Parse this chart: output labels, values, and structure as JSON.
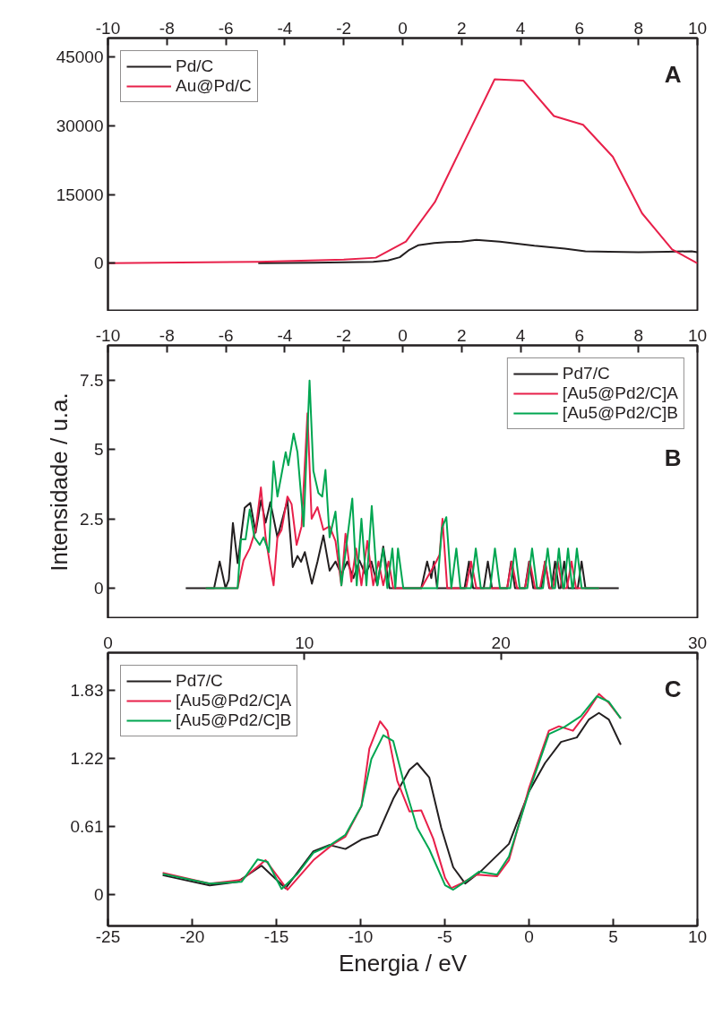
{
  "chart_data": [
    {
      "type": "line",
      "annotations": [
        "A"
      ],
      "xlim": [
        -10,
        10
      ],
      "xticks": [
        -10,
        -8,
        -6,
        -4,
        -2,
        0,
        2,
        4,
        6,
        8,
        10
      ],
      "ylim": [
        -10500,
        49100
      ],
      "yticks": [
        0,
        15000,
        30000,
        45000
      ],
      "legend": "top left",
      "grid": false,
      "series": [
        {
          "name": "Pd/C",
          "color": "#231f20",
          "x": [
            -4.9,
            -3,
            -1,
            -0.5,
            -0.1,
            0.2,
            0.52,
            1.07,
            1.5,
            2.0,
            2.5,
            3.3,
            4.47,
            5.5,
            6.2,
            7,
            8,
            9,
            9.8,
            10
          ],
          "values": [
            0,
            100,
            300,
            600,
            1300,
            2800,
            3900,
            4400,
            4600,
            4700,
            5100,
            4700,
            3800,
            3200,
            2600,
            2500,
            2400,
            2500,
            2600,
            2400
          ]
        },
        {
          "name": "Au@Pd/C",
          "color": "#e8204a",
          "x": [
            -10,
            -4.9,
            -2,
            -0.91,
            0.11,
            1.09,
            3.12,
            4.1,
            5.13,
            6.12,
            7.13,
            8.12,
            9.14,
            10
          ],
          "values": [
            0,
            300,
            800,
            1200,
            4700,
            13300,
            40100,
            39800,
            32100,
            30200,
            23200,
            10900,
            3000,
            0
          ]
        }
      ]
    },
    {
      "type": "line",
      "annotations": [
        "B"
      ],
      "ylabel": "Intensidade / u.a.",
      "xlim": [
        -10,
        10
      ],
      "xticks": [
        -10,
        -8,
        -6,
        -4,
        -2,
        0,
        2,
        4,
        6,
        8,
        10
      ],
      "ylim": [
        -1.1,
        8.75
      ],
      "yticks": [
        0,
        {
          "value": 2.5,
          "label": "2.5"
        },
        5,
        {
          "value": 7.5,
          "label": "7.5"
        }
      ],
      "legend": "top right",
      "grid": false,
      "series": [
        {
          "name": "Pd7/C",
          "color": "#231f20",
          "x": [
            -7.36,
            -6.4,
            -6.21,
            -6.01,
            -5.9,
            -5.76,
            -5.6,
            -5.36,
            -5.17,
            -4.99,
            -4.81,
            -4.65,
            -4.49,
            -4.25,
            -3.91,
            -3.73,
            -3.57,
            -3.45,
            -3.32,
            -3.08,
            -2.89,
            -2.69,
            -2.48,
            -2.28,
            -2.08,
            -1.88,
            -1.67,
            -1.47,
            -1.27,
            -1.06,
            -0.86,
            -0.66,
            -0.45,
            0.63,
            0.83,
            0.97,
            1.06,
            1.17,
            2.1,
            2.25,
            2.39,
            2.75,
            2.89,
            3.03,
            3.55,
            3.68,
            3.81,
            4.15,
            4.29,
            4.43,
            4.7,
            4.83,
            4.97,
            5.05,
            5.17,
            5.3,
            5.36,
            5.48,
            5.61,
            5.94,
            6.07,
            6.2,
            7.33
          ],
          "values": [
            0,
            0,
            0.96,
            0,
            0.3,
            2.35,
            0.9,
            2.9,
            3.07,
            2.0,
            3.16,
            2.36,
            3.1,
            1.83,
            3.16,
            0.76,
            1.16,
            0.95,
            1.3,
            0.16,
            0.96,
            1.9,
            0.63,
            0.96,
            0.5,
            0.96,
            0.36,
            1.0,
            0.5,
            0.96,
            0.1,
            1.5,
            0,
            0,
            0.96,
            0.36,
            0.96,
            0,
            0,
            0.96,
            0,
            0,
            0.96,
            0,
            0,
            0.96,
            0,
            0,
            0.96,
            0,
            0,
            0.96,
            0,
            0,
            0.96,
            0,
            0,
            0.96,
            0,
            0,
            0.96,
            0,
            0
          ]
        },
        {
          "name": "[Au5@Pd2/C]A",
          "color": "#e8204a",
          "x": [
            -6.68,
            -5.6,
            -5.4,
            -5.19,
            -4.99,
            -4.81,
            -4.65,
            -4.49,
            -4.38,
            -4.25,
            -4.11,
            -3.91,
            -3.77,
            -3.6,
            -3.43,
            -3.23,
            -3.09,
            -2.89,
            -2.69,
            -2.48,
            -2.28,
            -2.08,
            -1.94,
            -1.74,
            -1.58,
            -1.4,
            -1.2,
            -1.0,
            -0.82,
            -0.66,
            -0.48,
            -0.32,
            0.63,
            1.14,
            1.25,
            1.35,
            1.51,
            2.15,
            2.32,
            2.5,
            3.54,
            3.7,
            3.88,
            4.15,
            4.31,
            4.49,
            4.66,
            4.83,
            4.99,
            5.1,
            5.26,
            5.42,
            5.57,
            5.73,
            5.88,
            6.66
          ],
          "values": [
            0,
            0,
            1.0,
            1.43,
            2.1,
            3.63,
            1.83,
            0.76,
            0.1,
            1.83,
            2.1,
            3.3,
            3.03,
            1.56,
            2.23,
            6.3,
            2.5,
            2.92,
            2.1,
            2.23,
            1.7,
            0.1,
            1.96,
            0.23,
            1.43,
            0.1,
            1.7,
            0.1,
            0.96,
            0.1,
            0.96,
            0,
            0,
            0.96,
            1.2,
            2.5,
            0,
            0,
            0.96,
            0,
            0,
            0.96,
            0,
            0,
            0.96,
            0,
            0,
            0.96,
            0,
            0,
            0.96,
            0,
            0,
            0.96,
            0,
            0
          ]
        },
        {
          "name": "[Au5@Pd2/C]B",
          "color": "#00a651",
          "x": [
            -6.68,
            -5.6,
            -5.49,
            -5.33,
            -5.19,
            -5.03,
            -4.85,
            -4.72,
            -4.54,
            -4.38,
            -4.25,
            -4.11,
            -3.97,
            -3.88,
            -3.7,
            -3.57,
            -3.36,
            -3.16,
            -3.03,
            -2.86,
            -2.73,
            -2.62,
            -2.48,
            -2.28,
            -2.08,
            -1.71,
            -1.56,
            -1.4,
            -1.23,
            -1.05,
            -0.86,
            -0.66,
            -0.52,
            -0.35,
            -0.25,
            -0.16,
            0.02,
            1.17,
            1.33,
            1.48,
            1.65,
            1.82,
            1.96,
            2.32,
            2.48,
            2.65,
            2.97,
            3.13,
            3.3,
            3.65,
            3.81,
            3.97,
            4.23,
            4.39,
            4.56,
            4.76,
            4.92,
            5.08,
            5.17,
            5.3,
            5.44,
            5.48,
            5.61,
            5.75,
            5.78,
            5.91,
            6.07,
            6.66
          ],
          "values": [
            0,
            0,
            1.76,
            1.76,
            2.83,
            1.83,
            1.56,
            1.83,
            1.3,
            4.57,
            3.3,
            4.1,
            4.9,
            4.43,
            5.57,
            4.9,
            2.23,
            7.48,
            4.23,
            3.43,
            3.3,
            4.26,
            1.83,
            2.76,
            0.1,
            3.23,
            0.1,
            2.5,
            0.1,
            2.96,
            0.1,
            1.43,
            0,
            1.43,
            0,
            1.43,
            0,
            0,
            2.16,
            2.56,
            0,
            1.43,
            0,
            0,
            1.43,
            0,
            0,
            1.43,
            0,
            0,
            1.43,
            0,
            0,
            1.43,
            0,
            0,
            1.43,
            0,
            0,
            1.43,
            0,
            0,
            1.43,
            0,
            0,
            1.43,
            0,
            0
          ]
        }
      ]
    },
    {
      "type": "line",
      "annotations": [
        "C"
      ],
      "xlabel": "Energia / eV",
      "xlim": [
        -25,
        10
      ],
      "xticks": [
        -25,
        -20,
        -15,
        -10,
        -5,
        0,
        5,
        10
      ],
      "x2lim": [
        0,
        30
      ],
      "x2ticks": [
        0,
        10,
        20,
        30
      ],
      "ylim": [
        -0.28,
        2.17
      ],
      "yticks": [
        0,
        0.61,
        1.22,
        1.83
      ],
      "legend": "top left",
      "grid": false,
      "series": [
        {
          "name": "Pd7/C",
          "color": "#231f20",
          "x": [
            -21.75,
            -18.96,
            -17.3,
            -15.88,
            -14.45,
            -12.8,
            -11.85,
            -10.9,
            -9.95,
            -9.0,
            -8.06,
            -7.1,
            -6.64,
            -5.92,
            -5.21,
            -4.5,
            -3.79,
            -2.84,
            -1.19,
            0.0,
            0.95,
            1.9,
            2.84,
            3.55,
            4.15,
            4.74,
            5.45
          ],
          "values": [
            0.175,
            0.084,
            0.116,
            0.26,
            0.058,
            0.39,
            0.446,
            0.41,
            0.495,
            0.537,
            0.86,
            1.12,
            1.18,
            1.05,
            0.6,
            0.246,
            0.1,
            0.213,
            0.456,
            0.925,
            1.18,
            1.37,
            1.41,
            1.57,
            1.63,
            1.57,
            1.345
          ]
        },
        {
          "name": "[Au5@Pd2/C]A",
          "color": "#e8204a",
          "x": [
            -21.75,
            -18.96,
            -17.06,
            -15.64,
            -14.34,
            -12.8,
            -11.61,
            -10.9,
            -9.95,
            -9.48,
            -8.84,
            -8.41,
            -7.82,
            -7.1,
            -6.4,
            -5.69,
            -4.98,
            -4.62,
            -4.03,
            -3.08,
            -1.9,
            -1.19,
            0.0,
            1.18,
            1.78,
            2.61,
            3.44,
            4.15,
            4.74,
            5.45
          ],
          "values": [
            0.197,
            0.1,
            0.133,
            0.31,
            0.045,
            0.31,
            0.456,
            0.52,
            0.795,
            1.31,
            1.555,
            1.47,
            1.02,
            0.747,
            0.757,
            0.504,
            0.149,
            0.058,
            0.1,
            0.18,
            0.165,
            0.31,
            0.957,
            1.47,
            1.51,
            1.47,
            1.636,
            1.8,
            1.72,
            1.58
          ]
        },
        {
          "name": "[Au5@Pd2/C]B",
          "color": "#00a651",
          "x": [
            -21.75,
            -18.96,
            -17.06,
            -16.11,
            -15.52,
            -14.69,
            -13.74,
            -12.8,
            -11.85,
            -10.9,
            -9.95,
            -9.36,
            -8.65,
            -8.06,
            -7.35,
            -6.64,
            -5.92,
            -4.98,
            -4.5,
            -3.79,
            -2.96,
            -1.9,
            -1.19,
            0.0,
            1.18,
            2.13,
            3.08,
            4.03,
            4.74,
            5.45
          ],
          "values": [
            0.187,
            0.1,
            0.116,
            0.317,
            0.294,
            0.052,
            0.188,
            0.375,
            0.44,
            0.537,
            0.795,
            1.216,
            1.43,
            1.377,
            0.957,
            0.6,
            0.407,
            0.084,
            0.045,
            0.116,
            0.207,
            0.18,
            0.343,
            0.925,
            1.44,
            1.507,
            1.6,
            1.78,
            1.73,
            1.58
          ]
        }
      ]
    }
  ]
}
